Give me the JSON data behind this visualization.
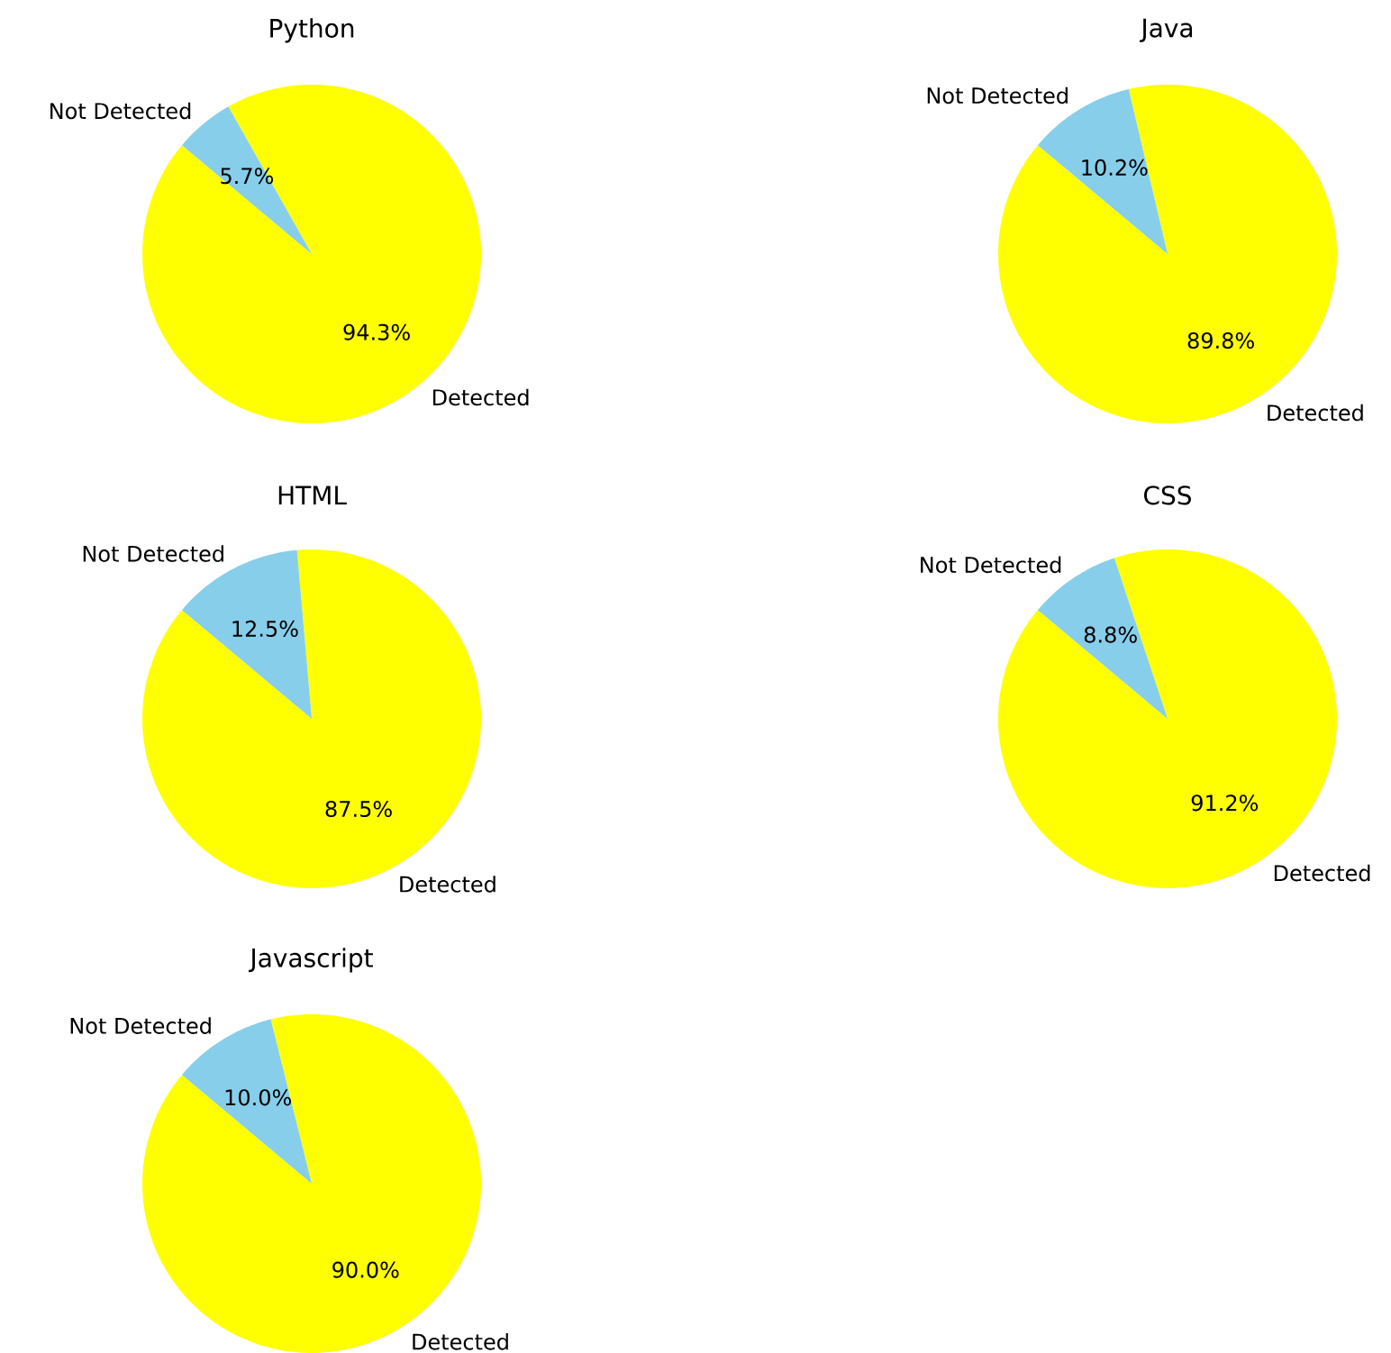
{
  "chart_data": [
    {
      "type": "pie",
      "title": "Python",
      "categories": [
        "Detected",
        "Not Detected"
      ],
      "values": [
        94.3,
        5.7
      ],
      "colors": [
        "#ffff00",
        "#87ceeb"
      ],
      "value_labels": [
        "94.3%",
        "5.7%"
      ]
    },
    {
      "type": "pie",
      "title": "Java",
      "categories": [
        "Detected",
        "Not Detected"
      ],
      "values": [
        89.8,
        10.2
      ],
      "colors": [
        "#ffff00",
        "#87ceeb"
      ],
      "value_labels": [
        "89.8%",
        "10.2%"
      ]
    },
    {
      "type": "pie",
      "title": "HTML",
      "categories": [
        "Detected",
        "Not Detected"
      ],
      "values": [
        87.5,
        12.5
      ],
      "colors": [
        "#ffff00",
        "#87ceeb"
      ],
      "value_labels": [
        "87.5%",
        "12.5%"
      ]
    },
    {
      "type": "pie",
      "title": "CSS",
      "categories": [
        "Detected",
        "Not Detected"
      ],
      "values": [
        91.2,
        8.8
      ],
      "colors": [
        "#ffff00",
        "#87ceeb"
      ],
      "value_labels": [
        "91.2%",
        "8.8%"
      ]
    },
    {
      "type": "pie",
      "title": "Javascript",
      "categories": [
        "Detected",
        "Not Detected"
      ],
      "values": [
        90.0,
        10.0
      ],
      "colors": [
        "#ffff00",
        "#87ceeb"
      ],
      "value_labels": [
        "90.0%",
        "10.0%"
      ]
    }
  ]
}
